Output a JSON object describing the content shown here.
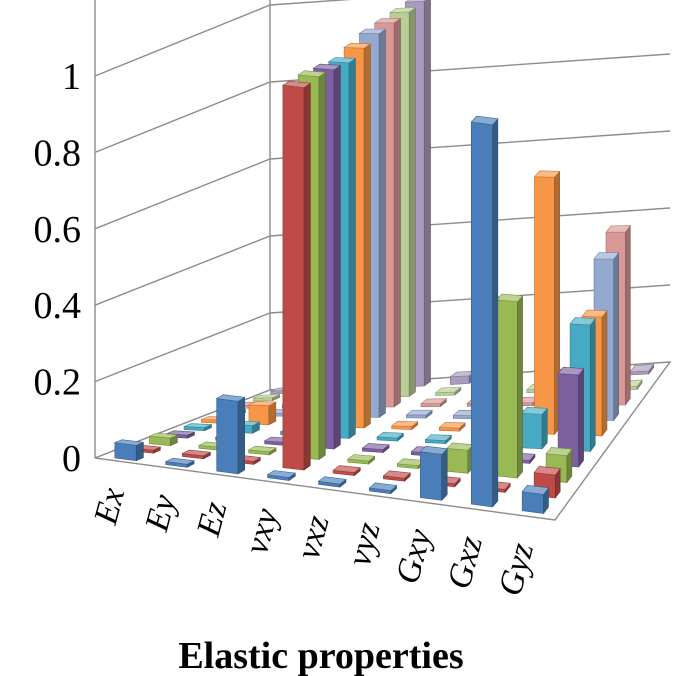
{
  "chart_data": {
    "type": "bar",
    "subtype": "3d-column",
    "xlabel": "Elastic properties",
    "ylabel": "",
    "ylim": [
      0,
      1
    ],
    "yticks": [
      "0",
      "0.2",
      "0.4",
      "0.6",
      "0.8",
      "1"
    ],
    "grid": true,
    "legend": "none",
    "categories": [
      "Ex",
      "Ey",
      "Ez",
      "vxy",
      "vxz",
      "vyz",
      "Gxy",
      "Gxz",
      "Gyz"
    ],
    "series": [
      {
        "color": "#4a7ebb",
        "values": [
          0.04,
          0.0,
          0.19,
          0.0,
          0.0,
          0.0,
          0.12,
          1.0,
          0.05
        ]
      },
      {
        "color": "#be4b48",
        "values": [
          0.0,
          0.0,
          0.0,
          1.0,
          0.0,
          0.0,
          0.0,
          0.0,
          0.06
        ]
      },
      {
        "color": "#98b954",
        "values": [
          0.02,
          0.0,
          0.0,
          1.0,
          0.0,
          0.0,
          0.06,
          0.46,
          0.07
        ]
      },
      {
        "color": "#7d60a0",
        "values": [
          0.0,
          0.0,
          0.0,
          0.99,
          0.0,
          0.0,
          0.0,
          0.0,
          0.24
        ]
      },
      {
        "color": "#46aac5",
        "values": [
          0.0,
          0.02,
          0.0,
          0.98,
          0.0,
          0.0,
          0.0,
          0.09,
          0.33
        ]
      },
      {
        "color": "#f79646",
        "values": [
          0.0,
          0.05,
          0.0,
          0.99,
          0.0,
          0.0,
          0.0,
          0.67,
          0.31
        ]
      },
      {
        "color": "#93a9cf",
        "values": [
          0.0,
          0.0,
          0.0,
          1.0,
          0.0,
          0.0,
          0.0,
          0.0,
          0.42
        ]
      },
      {
        "color": "#d99795",
        "values": [
          0.0,
          0.0,
          0.0,
          1.0,
          0.0,
          0.0,
          0.0,
          0.03,
          0.45
        ]
      },
      {
        "color": "#b9cd96",
        "values": [
          0.0,
          0.0,
          0.0,
          1.0,
          0.0,
          0.0,
          0.0,
          0.0,
          0.0
        ]
      },
      {
        "color": "#a99bbd",
        "values": [
          0.0,
          0.0,
          0.0,
          1.0,
          0.02,
          0.0,
          0.0,
          0.0,
          0.0
        ]
      }
    ]
  }
}
